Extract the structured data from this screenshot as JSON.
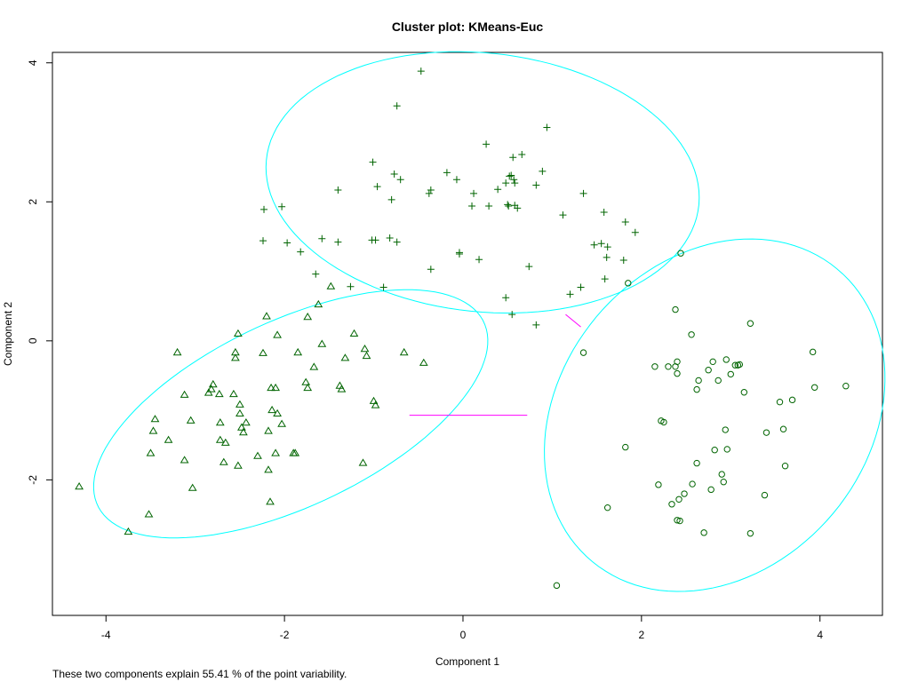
{
  "chart_data": {
    "type": "scatter",
    "title": "Cluster plot: KMeans-Euc",
    "xlabel": "Component 1",
    "ylabel": "Component 2",
    "xlim": [
      -4.6,
      4.7
    ],
    "ylim": [
      -3.95,
      4.15
    ],
    "xticks": [
      -4,
      -2,
      0,
      2,
      4
    ],
    "yticks": [
      -2,
      0,
      2,
      4
    ],
    "xtick_labels": [
      "-4",
      "-2",
      "0",
      "2",
      "4"
    ],
    "ytick_labels": [
      "-2",
      "0",
      "2",
      "4"
    ],
    "grid": false,
    "legend": "none",
    "point_color": "#006400",
    "ellipse_color": "#00ffff",
    "connector_color": "#ff00ff",
    "series": [
      {
        "marker": "triangle",
        "points": [
          [
            -4.3,
            -2.1
          ],
          [
            -3.75,
            -2.75
          ],
          [
            -3.52,
            -2.5
          ],
          [
            -3.5,
            -1.62
          ],
          [
            -3.45,
            -1.13
          ],
          [
            -3.47,
            -1.3
          ],
          [
            -3.3,
            -1.43
          ],
          [
            -3.2,
            -0.17
          ],
          [
            -3.12,
            -1.72
          ],
          [
            -3.12,
            -0.78
          ],
          [
            -3.05,
            -1.15
          ],
          [
            -3.03,
            -2.12
          ],
          [
            -2.82,
            -0.7
          ],
          [
            -2.85,
            -0.75
          ],
          [
            -2.8,
            -0.63
          ],
          [
            -2.73,
            -0.77
          ],
          [
            -2.72,
            -1.18
          ],
          [
            -2.72,
            -1.43
          ],
          [
            -2.68,
            -1.75
          ],
          [
            -2.66,
            -1.47
          ],
          [
            -2.57,
            -0.77
          ],
          [
            -2.55,
            -0.25
          ],
          [
            -2.55,
            -0.17
          ],
          [
            -2.52,
            0.1
          ],
          [
            -2.52,
            -1.8
          ],
          [
            -2.5,
            -0.92
          ],
          [
            -2.5,
            -1.05
          ],
          [
            -2.48,
            -1.25
          ],
          [
            -2.46,
            -1.32
          ],
          [
            -2.43,
            -1.18
          ],
          [
            -2.3,
            -1.66
          ],
          [
            -2.24,
            -0.18
          ],
          [
            -2.2,
            0.35
          ],
          [
            -2.18,
            -1.3
          ],
          [
            -2.18,
            -1.86
          ],
          [
            -2.16,
            -2.32
          ],
          [
            -2.15,
            -0.68
          ],
          [
            -2.14,
            -1.0
          ],
          [
            -2.1,
            -1.62
          ],
          [
            -2.1,
            -0.68
          ],
          [
            -2.08,
            -1.05
          ],
          [
            -2.08,
            0.08
          ],
          [
            -2.03,
            -1.2
          ],
          [
            -1.9,
            -1.62
          ],
          [
            -1.88,
            -1.62
          ],
          [
            -1.85,
            -0.17
          ],
          [
            -1.76,
            -0.6
          ],
          [
            -1.74,
            -0.68
          ],
          [
            -1.74,
            0.34
          ],
          [
            -1.67,
            -0.38
          ],
          [
            -1.62,
            0.52
          ],
          [
            -1.58,
            -0.05
          ],
          [
            -1.48,
            0.78
          ],
          [
            -1.38,
            -0.65
          ],
          [
            -1.36,
            -0.7
          ],
          [
            -1.32,
            -0.25
          ],
          [
            -1.22,
            0.1
          ],
          [
            -1.12,
            -1.76
          ],
          [
            -1.1,
            -0.12
          ],
          [
            -1.08,
            -0.22
          ],
          [
            -1.0,
            -0.87
          ],
          [
            -0.98,
            -0.93
          ],
          [
            -0.66,
            -0.17
          ],
          [
            -0.44,
            -0.32
          ]
        ]
      },
      {
        "marker": "plus",
        "points": [
          [
            -0.47,
            3.88
          ],
          [
            -0.74,
            3.38
          ],
          [
            0.26,
            2.83
          ],
          [
            0.94,
            3.07
          ],
          [
            0.66,
            2.68
          ],
          [
            0.56,
            2.64
          ],
          [
            -1.01,
            2.57
          ],
          [
            -0.77,
            2.4
          ],
          [
            -0.7,
            2.32
          ],
          [
            -0.96,
            2.22
          ],
          [
            -0.8,
            2.03
          ],
          [
            -1.4,
            2.17
          ],
          [
            -0.36,
            2.17
          ],
          [
            -0.38,
            2.12
          ],
          [
            -0.18,
            2.42
          ],
          [
            -0.07,
            2.32
          ],
          [
            0.12,
            2.12
          ],
          [
            0.39,
            2.18
          ],
          [
            0.48,
            2.27
          ],
          [
            0.52,
            2.37
          ],
          [
            0.57,
            2.32
          ],
          [
            0.58,
            2.27
          ],
          [
            0.54,
            2.38
          ],
          [
            0.58,
            1.95
          ],
          [
            0.51,
            1.94
          ],
          [
            0.5,
            1.96
          ],
          [
            0.61,
            1.91
          ],
          [
            0.82,
            2.24
          ],
          [
            0.89,
            2.44
          ],
          [
            0.1,
            1.94
          ],
          [
            0.29,
            1.94
          ],
          [
            1.12,
            1.81
          ],
          [
            1.35,
            2.12
          ],
          [
            1.58,
            1.85
          ],
          [
            1.82,
            1.71
          ],
          [
            1.93,
            1.56
          ],
          [
            -2.23,
            1.89
          ],
          [
            -2.03,
            1.93
          ],
          [
            -2.24,
            1.44
          ],
          [
            -1.97,
            1.41
          ],
          [
            -1.82,
            1.28
          ],
          [
            -1.58,
            1.47
          ],
          [
            -1.4,
            1.42
          ],
          [
            -1.02,
            1.45
          ],
          [
            -0.98,
            1.45
          ],
          [
            -0.74,
            1.42
          ],
          [
            -0.82,
            1.48
          ],
          [
            -0.04,
            1.27
          ],
          [
            -0.04,
            1.25
          ],
          [
            0.18,
            1.17
          ],
          [
            -0.36,
            1.03
          ],
          [
            -1.65,
            0.96
          ],
          [
            -1.26,
            0.78
          ],
          [
            -0.89,
            0.77
          ],
          [
            0.74,
            1.07
          ],
          [
            1.47,
            1.38
          ],
          [
            1.55,
            1.4
          ],
          [
            1.62,
            1.35
          ],
          [
            1.61,
            1.2
          ],
          [
            1.8,
            1.16
          ],
          [
            0.48,
            0.62
          ],
          [
            1.2,
            0.67
          ],
          [
            1.32,
            0.77
          ],
          [
            1.59,
            0.89
          ],
          [
            0.55,
            0.38
          ],
          [
            0.82,
            0.23
          ]
        ]
      },
      {
        "marker": "circle",
        "points": [
          [
            1.05,
            -3.52
          ],
          [
            1.35,
            -0.17
          ],
          [
            1.62,
            -2.4
          ],
          [
            1.82,
            -1.53
          ],
          [
            1.85,
            0.83
          ],
          [
            2.15,
            -0.37
          ],
          [
            2.19,
            -2.07
          ],
          [
            2.22,
            -1.15
          ],
          [
            2.25,
            -1.17
          ],
          [
            2.3,
            -0.37
          ],
          [
            2.34,
            -2.35
          ],
          [
            2.38,
            -0.37
          ],
          [
            2.38,
            0.45
          ],
          [
            2.4,
            -0.3
          ],
          [
            2.4,
            -0.47
          ],
          [
            2.4,
            -2.58
          ],
          [
            2.42,
            -2.28
          ],
          [
            2.43,
            -2.59
          ],
          [
            2.44,
            1.26
          ],
          [
            2.48,
            -2.2
          ],
          [
            2.56,
            0.09
          ],
          [
            2.57,
            -2.06
          ],
          [
            2.62,
            -0.7
          ],
          [
            2.64,
            -0.57
          ],
          [
            2.62,
            -1.76
          ],
          [
            2.7,
            -2.76
          ],
          [
            2.75,
            -0.42
          ],
          [
            2.78,
            -2.14
          ],
          [
            2.8,
            -0.3
          ],
          [
            2.82,
            -1.57
          ],
          [
            2.86,
            -0.57
          ],
          [
            2.9,
            -1.92
          ],
          [
            2.92,
            -2.03
          ],
          [
            2.94,
            -1.28
          ],
          [
            2.95,
            -0.27
          ],
          [
            2.96,
            -1.56
          ],
          [
            3.0,
            -0.48
          ],
          [
            3.05,
            -0.35
          ],
          [
            3.08,
            -0.35
          ],
          [
            3.1,
            -0.34
          ],
          [
            3.15,
            -0.74
          ],
          [
            3.22,
            0.25
          ],
          [
            3.22,
            -2.77
          ],
          [
            3.55,
            -0.88
          ],
          [
            3.38,
            -2.22
          ],
          [
            3.4,
            -1.32
          ],
          [
            3.59,
            -1.27
          ],
          [
            3.61,
            -1.8
          ],
          [
            3.69,
            -0.85
          ],
          [
            3.92,
            -0.16
          ],
          [
            3.94,
            -0.67
          ],
          [
            4.29,
            -0.65
          ]
        ]
      }
    ],
    "ellipses": [
      {
        "cx": -1.93,
        "cy": -1.05,
        "a": 2.55,
        "b": 1.25,
        "angle": 35
      },
      {
        "cx": 0.22,
        "cy": 2.28,
        "a": 2.45,
        "b": 1.85,
        "angle": -12
      },
      {
        "cx": 2.82,
        "cy": -1.07,
        "a": 2.6,
        "b": 1.82,
        "angle": 72
      }
    ],
    "connectors": [
      [
        [
          -0.6,
          -1.07
        ],
        [
          0.72,
          -1.07
        ]
      ],
      [
        [
          1.15,
          0.38
        ],
        [
          1.32,
          0.2
        ]
      ]
    ]
  },
  "caption": "These two components explain 55.41 % of the point variability."
}
